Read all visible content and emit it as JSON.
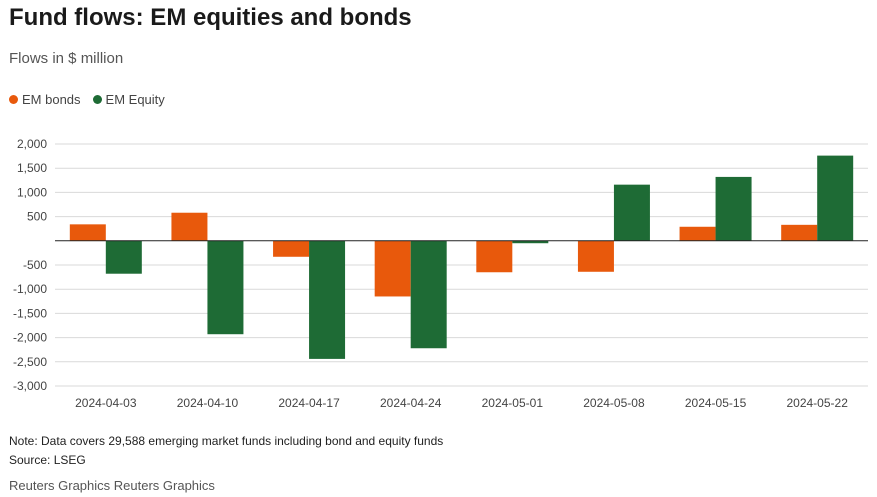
{
  "title": "Fund flows: EM equities and bonds",
  "subtitle": "Flows in $ million",
  "note": "Note: Data covers 29,588 emerging market funds including bond and equity funds",
  "source": "Source: LSEG",
  "credit": "Reuters Graphics Reuters Graphics",
  "colors": {
    "bonds": "#e8590c",
    "equity": "#1e6b35",
    "grid": "#d9d9d9",
    "zero": "#222222"
  },
  "chart_data": {
    "type": "bar",
    "categories": [
      "2024-04-03",
      "2024-04-10",
      "2024-04-17",
      "2024-04-24",
      "2024-05-01",
      "2024-05-08",
      "2024-05-15",
      "2024-05-22"
    ],
    "series": [
      {
        "name": "EM bonds",
        "values": [
          340,
          580,
          -330,
          -1150,
          -650,
          -640,
          290,
          330
        ]
      },
      {
        "name": "EM Equity",
        "values": [
          -680,
          -1930,
          -2440,
          -2220,
          -50,
          1160,
          1320,
          1760
        ]
      }
    ],
    "yticks": [
      2000,
      1500,
      1000,
      500,
      0,
      -500,
      -1000,
      -1500,
      -2000,
      -2500,
      -3000
    ],
    "ytick_labels": [
      "2,000",
      "1,500",
      "1,000",
      "500",
      "",
      "-500",
      "-1,000",
      "-1,500",
      "-2,000",
      "-2,500",
      "-3,000"
    ],
    "ylim": [
      -3000,
      2000
    ],
    "legend_position": "top-left",
    "grid": true
  }
}
